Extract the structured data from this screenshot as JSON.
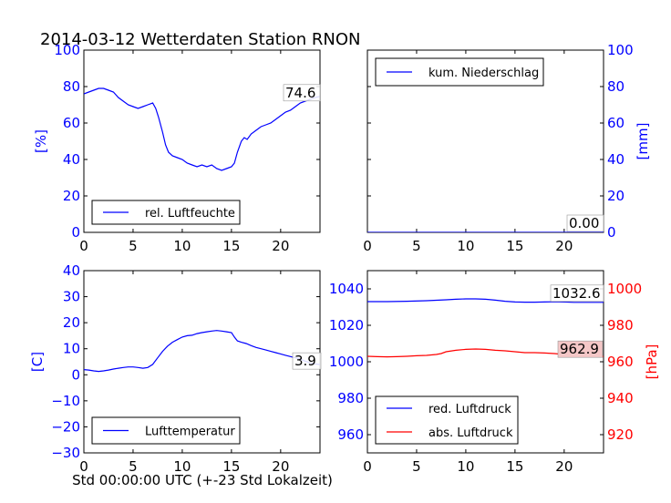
{
  "page_title": "2014-03-12 Wetterdaten Station RNON",
  "colors": {
    "blue": "#0000ff",
    "red": "#ff0000",
    "black": "#000000",
    "label_bg_red": "#f4c7c7"
  },
  "chart_data": [
    {
      "type": "line",
      "title": "2014-03-12 Wetterdaten Station RNON",
      "xlabel": "",
      "ylabel": "[%]",
      "xlim": [
        0,
        24
      ],
      "ylim": [
        0,
        100
      ],
      "xticks": [
        "0",
        "5",
        "10",
        "15",
        "20"
      ],
      "yticks": [
        "0",
        "20",
        "40",
        "60",
        "80",
        "100"
      ],
      "legend": "lower-left",
      "series": [
        {
          "name": "rel. Luftfeuchte",
          "color": "blue",
          "x": [
            0,
            0.5,
            1,
            1.5,
            2,
            2.5,
            3,
            3.5,
            4,
            4.5,
            5,
            5.5,
            6,
            6.5,
            7,
            7.3,
            7.6,
            8,
            8.3,
            8.6,
            9,
            9.5,
            10,
            10.5,
            11,
            11.5,
            12,
            12.5,
            13,
            13.5,
            14,
            14.5,
            15,
            15.3,
            15.6,
            16,
            16.3,
            16.6,
            17,
            17.5,
            18,
            18.5,
            19,
            19.5,
            20,
            20.5,
            21,
            21.5,
            22,
            22.5,
            23,
            23.5,
            24
          ],
          "y": [
            76,
            77,
            78,
            79,
            79,
            78,
            77,
            74,
            72,
            70,
            69,
            68,
            69,
            70,
            71,
            68,
            63,
            55,
            48,
            44,
            42,
            41,
            40,
            38,
            37,
            36,
            37,
            36,
            37,
            35,
            34,
            35,
            36,
            38,
            44,
            50,
            52,
            51,
            54,
            56,
            58,
            59,
            60,
            62,
            64,
            66,
            67,
            69,
            71,
            72,
            73,
            74,
            74.6
          ]
        }
      ],
      "annotations": [
        "74.6"
      ]
    },
    {
      "type": "line",
      "title": "",
      "xlabel": "",
      "ylabel": "[mm]",
      "xlim": [
        0,
        24
      ],
      "ylim": [
        0,
        100
      ],
      "xticks": [
        "0",
        "5",
        "10",
        "15",
        "20"
      ],
      "yticks": [
        "0",
        "20",
        "40",
        "60",
        "80",
        "100"
      ],
      "yaxis_side": "right",
      "legend": "upper-left",
      "series": [
        {
          "name": "kum. Niederschlag",
          "color": "blue",
          "x": [
            0,
            24
          ],
          "y": [
            0,
            0
          ]
        }
      ],
      "annotations": [
        "0.00"
      ]
    },
    {
      "type": "line",
      "title": "",
      "xlabel": "Std 00:00:00 UTC (+-23 Std Lokalzeit)",
      "ylabel": "[C]",
      "xlim": [
        0,
        24
      ],
      "ylim": [
        -30,
        40
      ],
      "xticks": [
        "0",
        "5",
        "10",
        "15",
        "20"
      ],
      "yticks": [
        "−30",
        "−20",
        "−10",
        "0",
        "10",
        "20",
        "30",
        "40"
      ],
      "legend": "lower-left",
      "series": [
        {
          "name": "Lufttemperatur",
          "color": "blue",
          "x": [
            0,
            0.5,
            1,
            1.5,
            2,
            2.5,
            3,
            3.5,
            4,
            4.5,
            5,
            5.5,
            6,
            6.5,
            7,
            7.5,
            8,
            8.5,
            9,
            9.5,
            10,
            10.5,
            11,
            11.5,
            12,
            12.5,
            13,
            13.5,
            14,
            14.5,
            15,
            15.3,
            15.6,
            16,
            16.5,
            17,
            17.5,
            18,
            18.5,
            19,
            19.5,
            20,
            20.5,
            21,
            21.5,
            22,
            22.5,
            23,
            23.5,
            24
          ],
          "y": [
            2,
            1.8,
            1.5,
            1.3,
            1.5,
            1.8,
            2.2,
            2.5,
            2.8,
            3,
            3,
            2.8,
            2.5,
            2.8,
            4,
            6.5,
            9,
            11,
            12.5,
            13.5,
            14.5,
            15,
            15.2,
            15.8,
            16.2,
            16.5,
            16.8,
            17,
            16.8,
            16.5,
            16.2,
            14.5,
            13,
            12.5,
            12,
            11.2,
            10.5,
            10,
            9.5,
            9,
            8.5,
            8,
            7.5,
            7,
            6.5,
            6,
            5.2,
            4.6,
            4.2,
            3.9
          ]
        }
      ],
      "annotations": [
        "3.9"
      ]
    },
    {
      "type": "line",
      "title": "",
      "xlabel": "",
      "ylabel": "",
      "ylabel_right": "[hPa]",
      "xlim": [
        0,
        24
      ],
      "ylim": [
        950,
        1050
      ],
      "ylim_right": [
        910,
        1010
      ],
      "xticks": [
        "0",
        "5",
        "10",
        "15",
        "20"
      ],
      "yticks": [
        "960",
        "980",
        "1000",
        "1020",
        "1040"
      ],
      "yticks_right": [
        "920",
        "940",
        "960",
        "980",
        "1000"
      ],
      "legend": "lower-left",
      "series": [
        {
          "name": "red. Luftdruck",
          "color": "blue",
          "axis": "left",
          "x": [
            0,
            2,
            4,
            6,
            8,
            9,
            10,
            11,
            12,
            13,
            14,
            15,
            16,
            17,
            18,
            19,
            20,
            21,
            22,
            23,
            24
          ],
          "y": [
            1033,
            1033,
            1033.2,
            1033.5,
            1034,
            1034.3,
            1034.5,
            1034.5,
            1034.3,
            1033.8,
            1033.2,
            1032.8,
            1032.7,
            1032.7,
            1032.8,
            1032.9,
            1032.8,
            1032.6,
            1032.6,
            1032.6,
            1032.6
          ]
        },
        {
          "name": "abs. Luftdruck",
          "color": "red",
          "axis": "right",
          "x": [
            0,
            1,
            2,
            3,
            4,
            5,
            6,
            7,
            7.5,
            8,
            9,
            10,
            11,
            12,
            13,
            14,
            15,
            16,
            17,
            18,
            19,
            20,
            21,
            22,
            23,
            24
          ],
          "y": [
            963,
            962.8,
            962.7,
            962.8,
            963,
            963.3,
            963.5,
            964,
            964.5,
            965.5,
            966.3,
            966.8,
            967,
            966.8,
            966.3,
            966,
            965.5,
            965,
            965,
            964.8,
            964.5,
            964,
            963.5,
            963.2,
            963,
            962.9
          ]
        }
      ],
      "annotations": [
        "1032.6",
        "962.9"
      ]
    }
  ]
}
